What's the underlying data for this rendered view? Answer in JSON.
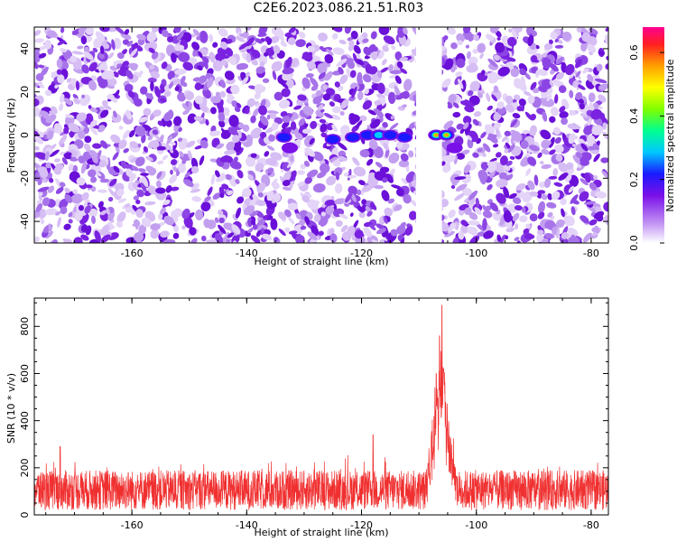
{
  "title": "C2E6.2023.086.21.51.R03",
  "colors": {
    "snr_line": "#f03030",
    "blob_base": "#7a22e0",
    "blob_light": "#c9a9f0"
  },
  "chart_data": [
    {
      "type": "heatmap",
      "xlabel": "Height of straight line (km)",
      "ylabel": "Frequency (Hz)",
      "xlim": [
        -177,
        -77
      ],
      "ylim": [
        -50,
        50
      ],
      "xticks": [
        -160,
        -140,
        -120,
        -100,
        -80
      ],
      "yticks": [
        -40,
        -20,
        0,
        20,
        40
      ],
      "colorbar": {
        "label": "Normalized spectral amplitude",
        "range": [
          0,
          0.68
        ],
        "ticks": [
          0.0,
          0.2,
          0.4,
          0.6
        ]
      },
      "gap_x": [
        -110.5,
        -106.0
      ],
      "peak_signal": {
        "frequency_hz": 0,
        "features": [
          {
            "x": -133.5,
            "y": -1,
            "amp": 0.18
          },
          {
            "x": -132.5,
            "y": -6,
            "amp": 0.14
          },
          {
            "x": -125.0,
            "y": -2,
            "amp": 0.16
          },
          {
            "x": -121.5,
            "y": -1,
            "amp": 0.22
          },
          {
            "x": -119.0,
            "y": 0,
            "amp": 0.25
          },
          {
            "x": -117.0,
            "y": 0,
            "amp": 0.28
          },
          {
            "x": -115.0,
            "y": 0,
            "amp": 0.2
          },
          {
            "x": -112.5,
            "y": -1,
            "amp": 0.22
          },
          {
            "x": -107.0,
            "y": 0,
            "amp": 0.55
          },
          {
            "x": -105.2,
            "y": 0,
            "amp": 0.5
          },
          {
            "x": -103.8,
            "y": -6,
            "amp": 0.15
          }
        ]
      }
    },
    {
      "type": "line",
      "xlabel": "Height of straight line (km)",
      "ylabel": "SNR (10 * v/v)",
      "xlim": [
        -177,
        -77
      ],
      "ylim": [
        0,
        920
      ],
      "xticks": [
        -160,
        -140,
        -120,
        -100,
        -80
      ],
      "yticks": [
        0,
        200,
        400,
        600,
        800
      ],
      "noise_band": [
        0,
        300
      ],
      "peaks": [
        {
          "x": -106.0,
          "y": 890
        },
        {
          "x": -106.4,
          "y": 760
        },
        {
          "x": -105.7,
          "y": 620
        },
        {
          "x": -107.0,
          "y": 600
        },
        {
          "x": -118.0,
          "y": 340
        },
        {
          "x": -172.5,
          "y": 290
        }
      ]
    }
  ]
}
